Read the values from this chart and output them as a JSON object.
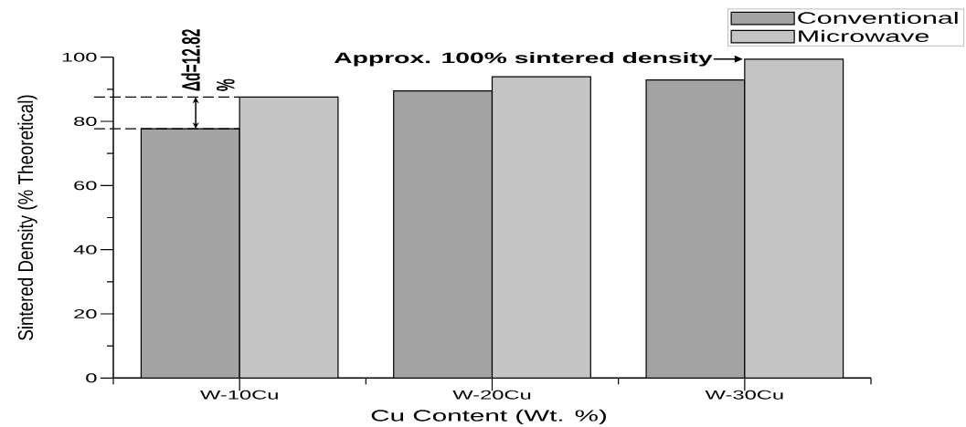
{
  "chart_data": {
    "type": "bar",
    "xlabel": "Cu Content (Wt. %)",
    "ylabel": "Sintered Density (% Theoretical)",
    "categories": [
      "W-10Cu",
      "W-20Cu",
      "W-30Cu"
    ],
    "series": [
      {
        "name": "Conventional",
        "color": "#a3a3a3",
        "values": [
          77.7,
          89.5,
          92.9
        ]
      },
      {
        "name": "Microwave",
        "color": "#c4c4c4",
        "values": [
          87.6,
          93.9,
          99.4
        ]
      }
    ],
    "ylim": [
      0,
      100
    ],
    "yticks": [
      0,
      {
        "value": 10,
        "label": null
      },
      20,
      {
        "value": 30,
        "label": null
      },
      40,
      {
        "value": 50,
        "label": null
      },
      60,
      {
        "value": 70,
        "label": null
      },
      80,
      {
        "value": 90,
        "label": null
      },
      100
    ],
    "ref_lines": [
      {
        "axis": "y",
        "value": 87.6,
        "line_style": "dashed"
      },
      {
        "axis": "y",
        "value": 77.7,
        "line_style": "dashed"
      }
    ],
    "annotations": [
      {
        "text": "Δd=12.82 %",
        "x": "W-10Cu",
        "y": 87.6
      },
      {
        "text": "Approx. 100% sintered density",
        "x": "W-30Cu",
        "y": 99.4
      }
    ],
    "legend": "top right"
  }
}
